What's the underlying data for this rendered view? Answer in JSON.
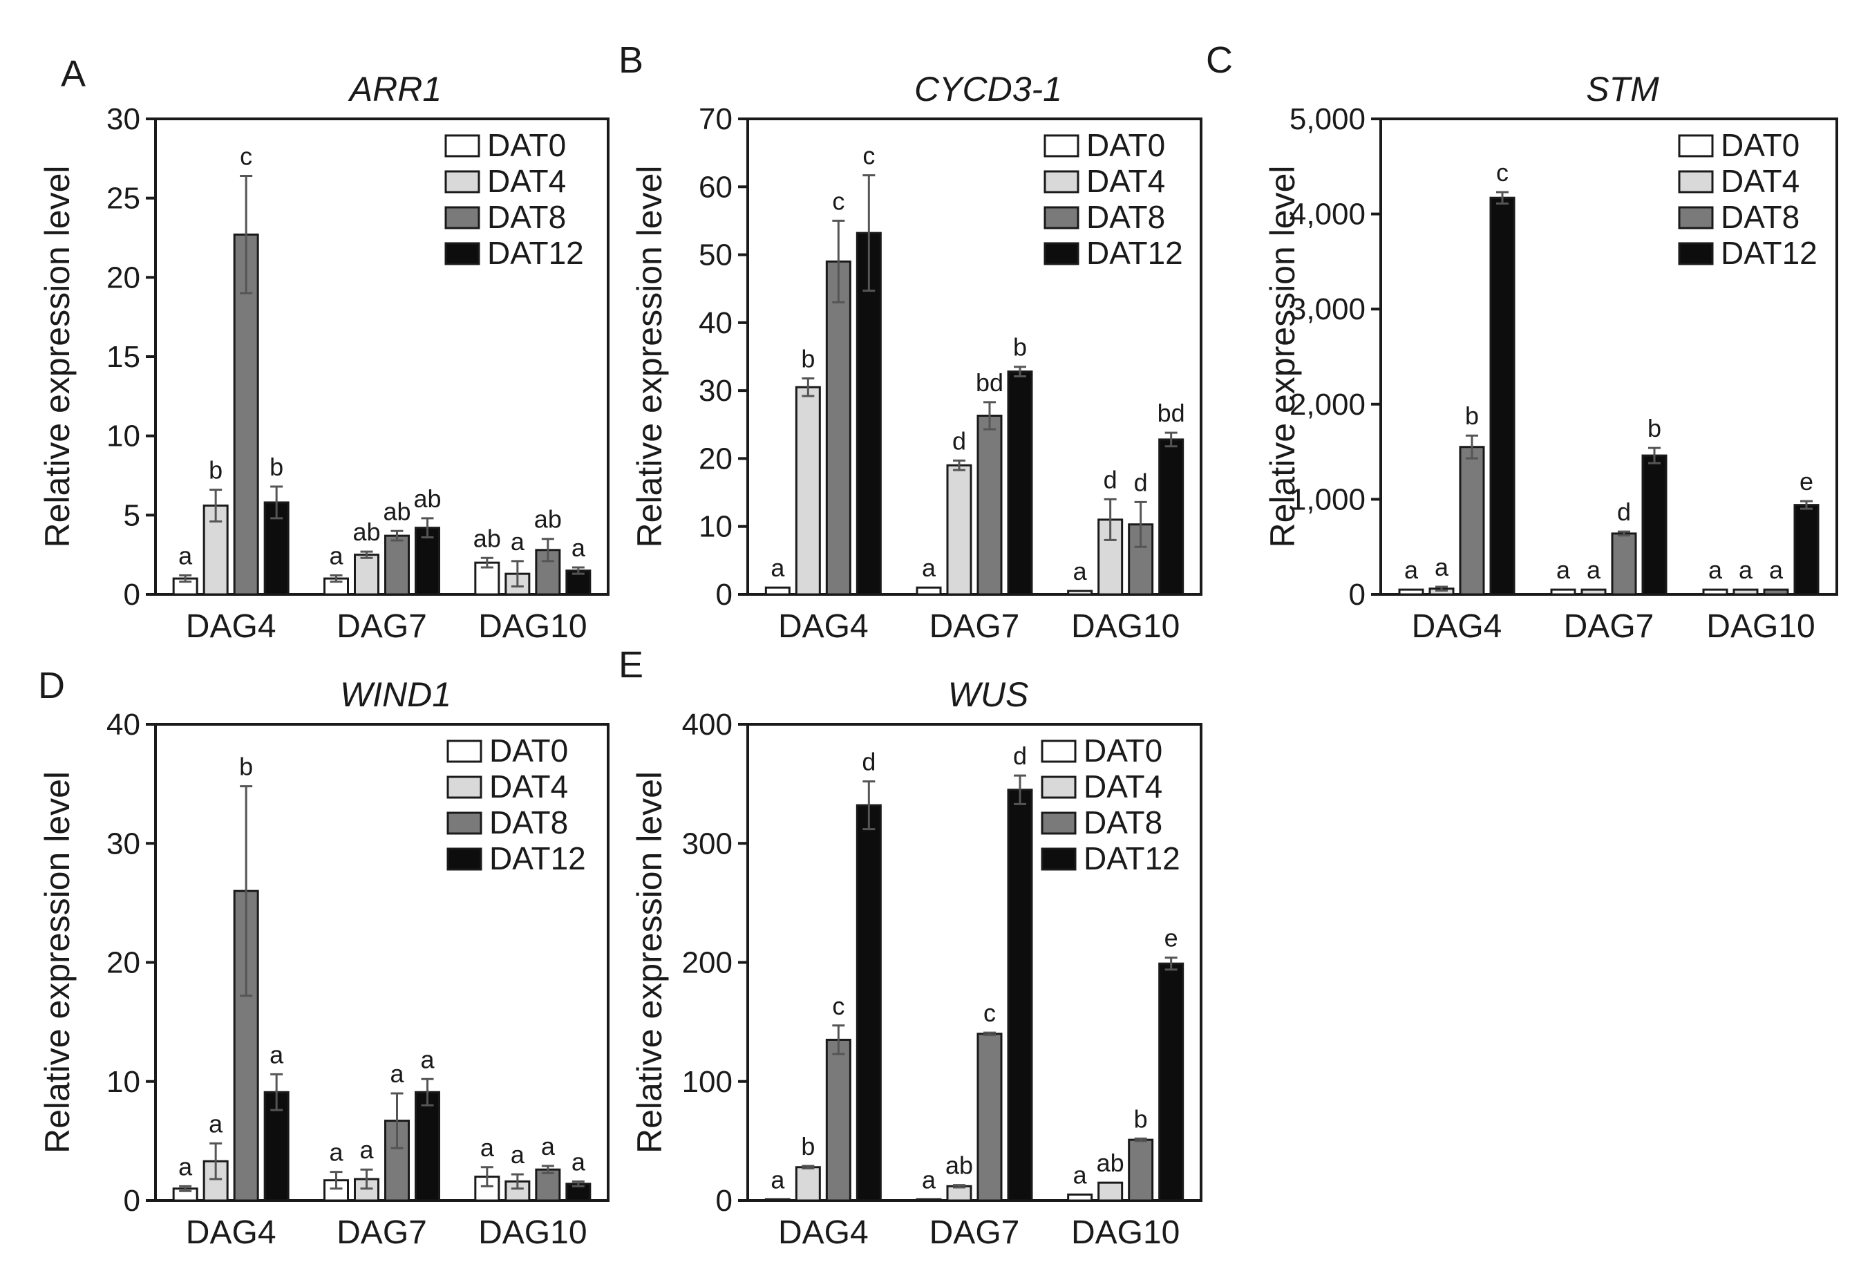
{
  "figure": {
    "series_colors": [
      "#ffffff",
      "#d9d9d9",
      "#7a7a7a",
      "#0d0d0d"
    ],
    "error_bar_color": "#555555"
  },
  "chart_data": [
    {
      "type": "bar",
      "panel": "A",
      "title": "ARR1",
      "xlabel": "",
      "ylabel": "Relative expression level",
      "ylim": [
        0,
        30
      ],
      "yticks": [
        "0",
        "5",
        "10",
        "15",
        "20",
        "25",
        "30"
      ],
      "categories": [
        "DAG4",
        "DAG7",
        "DAG10"
      ],
      "series": [
        {
          "name": "DAT0",
          "values": [
            1.0,
            1.0,
            2.0
          ],
          "errors": [
            0.2,
            0.2,
            0.3
          ],
          "letters": [
            "a",
            "a",
            "ab"
          ]
        },
        {
          "name": "DAT4",
          "values": [
            5.6,
            2.5,
            1.3
          ],
          "errors": [
            1.0,
            0.2,
            0.8
          ],
          "letters": [
            "b",
            "ab",
            "a"
          ]
        },
        {
          "name": "DAT8",
          "values": [
            22.7,
            3.7,
            2.8
          ],
          "errors": [
            3.7,
            0.3,
            0.7
          ],
          "letters": [
            "c",
            "ab",
            "ab"
          ]
        },
        {
          "name": "DAT12",
          "values": [
            5.8,
            4.2,
            1.5
          ],
          "errors": [
            1.0,
            0.6,
            0.2
          ],
          "letters": [
            "b",
            "ab",
            "a"
          ]
        }
      ],
      "legend": "top-right"
    },
    {
      "type": "bar",
      "panel": "B",
      "title": "CYCD3-1",
      "xlabel": "",
      "ylabel": "Relative expression level",
      "ylim": [
        0,
        70
      ],
      "yticks": [
        "0",
        "10",
        "20",
        "30",
        "40",
        "50",
        "60",
        "70"
      ],
      "categories": [
        "DAG4",
        "DAG7",
        "DAG10"
      ],
      "series": [
        {
          "name": "DAT0",
          "values": [
            1.0,
            1.0,
            0.5
          ],
          "errors": [
            0,
            0,
            0
          ],
          "letters": [
            "a",
            "a",
            "a"
          ]
        },
        {
          "name": "DAT4",
          "values": [
            30.5,
            19.0,
            11.0
          ],
          "errors": [
            1.3,
            0.7,
            3.0
          ],
          "letters": [
            "b",
            "d",
            "d"
          ]
        },
        {
          "name": "DAT8",
          "values": [
            49.0,
            26.3,
            10.3
          ],
          "errors": [
            6.0,
            2.0,
            3.3
          ],
          "letters": [
            "c",
            "bd",
            "d"
          ]
        },
        {
          "name": "DAT12",
          "values": [
            53.2,
            32.8,
            22.8
          ],
          "errors": [
            8.5,
            0.7,
            1.0
          ],
          "letters": [
            "c",
            "b",
            "bd"
          ]
        }
      ],
      "legend": "top-right"
    },
    {
      "type": "bar",
      "panel": "C",
      "title": "STM",
      "xlabel": "",
      "ylabel": "Relative expression level",
      "ylim": [
        0,
        5000
      ],
      "yticks": [
        "0",
        "1,000",
        "2,000",
        "3,000",
        "4,000",
        "5,000"
      ],
      "categories": [
        "DAG4",
        "DAG7",
        "DAG10"
      ],
      "series": [
        {
          "name": "DAT0",
          "values": [
            50,
            50,
            50
          ],
          "errors": [
            0,
            0,
            0
          ],
          "letters": [
            "a",
            "a",
            "a"
          ]
        },
        {
          "name": "DAT4",
          "values": [
            60,
            50,
            50
          ],
          "errors": [
            20,
            0,
            0
          ],
          "letters": [
            "a",
            "a",
            "a"
          ]
        },
        {
          "name": "DAT8",
          "values": [
            1550,
            640,
            50
          ],
          "errors": [
            120,
            20,
            0
          ],
          "letters": [
            "b",
            "d",
            "a"
          ]
        },
        {
          "name": "DAT12",
          "values": [
            4170,
            1460,
            940
          ],
          "errors": [
            60,
            80,
            40
          ],
          "letters": [
            "c",
            "b",
            "e"
          ]
        }
      ],
      "legend": "top-right"
    },
    {
      "type": "bar",
      "panel": "D",
      "title": "WIND1",
      "xlabel": "",
      "ylabel": "Relative expression level",
      "ylim": [
        0,
        40
      ],
      "yticks": [
        "0",
        "10",
        "20",
        "30",
        "40"
      ],
      "categories": [
        "DAG4",
        "DAG7",
        "DAG10"
      ],
      "series": [
        {
          "name": "DAT0",
          "values": [
            1.0,
            1.7,
            2.0
          ],
          "errors": [
            0.2,
            0.7,
            0.8
          ],
          "letters": [
            "a",
            "a",
            "a"
          ]
        },
        {
          "name": "DAT4",
          "values": [
            3.3,
            1.8,
            1.6
          ],
          "errors": [
            1.5,
            0.8,
            0.6
          ],
          "letters": [
            "a",
            "a",
            "a"
          ]
        },
        {
          "name": "DAT8",
          "values": [
            26.0,
            6.7,
            2.6
          ],
          "errors": [
            8.8,
            2.3,
            0.3
          ],
          "letters": [
            "b",
            "a",
            "a"
          ]
        },
        {
          "name": "DAT12",
          "values": [
            9.1,
            9.1,
            1.4
          ],
          "errors": [
            1.5,
            1.1,
            0.2
          ],
          "letters": [
            "a",
            "a",
            "a"
          ]
        }
      ],
      "legend": "top-right"
    },
    {
      "type": "bar",
      "panel": "E",
      "title": "WUS",
      "xlabel": "",
      "ylabel": "Relative expression level",
      "ylim": [
        0,
        400
      ],
      "yticks": [
        "0",
        "100",
        "200",
        "300",
        "400"
      ],
      "categories": [
        "DAG4",
        "DAG7",
        "DAG10"
      ],
      "series": [
        {
          "name": "DAT0",
          "values": [
            1,
            1,
            5
          ],
          "errors": [
            0,
            0,
            0
          ],
          "letters": [
            "a",
            "a",
            "a"
          ]
        },
        {
          "name": "DAT4",
          "values": [
            28,
            12,
            15
          ],
          "errors": [
            1,
            1,
            0
          ],
          "letters": [
            "b",
            "ab",
            "ab"
          ]
        },
        {
          "name": "DAT8",
          "values": [
            135,
            140,
            51
          ],
          "errors": [
            12,
            1,
            1
          ],
          "letters": [
            "c",
            "c",
            "b"
          ]
        },
        {
          "name": "DAT12",
          "values": [
            332,
            345,
            199
          ],
          "errors": [
            20,
            12,
            5
          ],
          "letters": [
            "d",
            "d",
            "e"
          ]
        }
      ],
      "legend": "top-right"
    }
  ]
}
